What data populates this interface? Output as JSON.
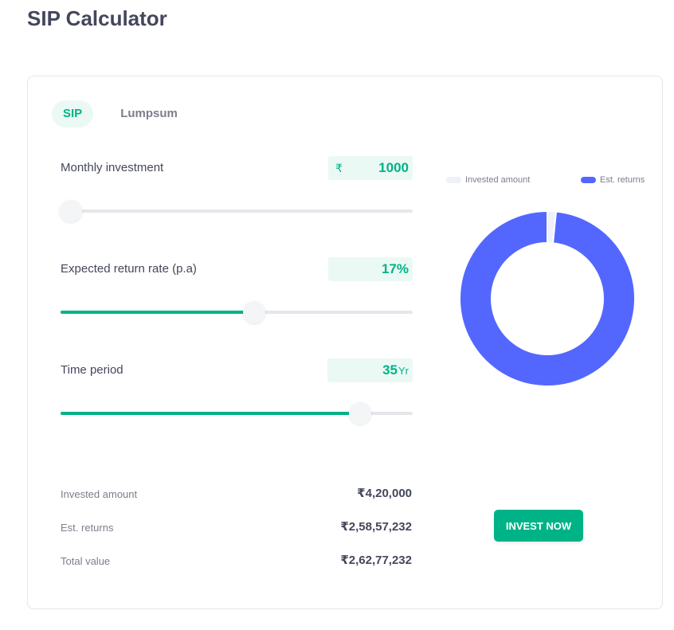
{
  "page": {
    "title": "SIP Calculator"
  },
  "tabs": [
    {
      "label": "SIP",
      "active": true
    },
    {
      "label": "Lumpsum",
      "active": false
    }
  ],
  "controls": {
    "monthly_investment": {
      "label": "Monthly investment",
      "prefix": "₹",
      "value": "1000",
      "suffix": "",
      "slider_fraction": 0.03
    },
    "return_rate": {
      "label": "Expected return rate (p.a)",
      "prefix": "",
      "value": "17",
      "suffix": "%",
      "slider_fraction": 0.55
    },
    "time_period": {
      "label": "Time period",
      "prefix": "",
      "value": "35",
      "suffix": "Yr",
      "slider_fraction": 0.85
    }
  },
  "chart": {
    "legend": [
      {
        "label": "Invested amount",
        "color": "#eef0fb"
      },
      {
        "label": "Est. returns",
        "color": "#5367ff"
      }
    ],
    "segments": [
      {
        "name": "Invested amount",
        "value": 420000,
        "color": "#eef0fb"
      },
      {
        "name": "Est. returns",
        "value": 25857232,
        "color": "#5367ff"
      }
    ]
  },
  "summary": [
    {
      "label": "Invested amount",
      "value": "₹4,20,000"
    },
    {
      "label": "Est. returns",
      "value": "₹2,58,57,232"
    },
    {
      "label": "Total value",
      "value": "₹2,62,77,232"
    }
  ],
  "cta": {
    "label": "INVEST NOW"
  }
}
